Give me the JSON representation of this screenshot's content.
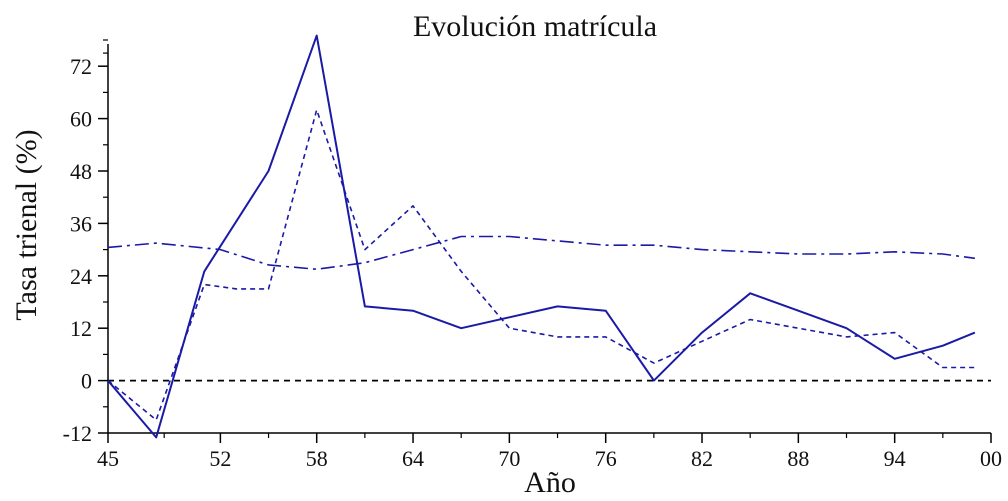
{
  "chart_data": {
    "type": "line",
    "title": "Evolución matrícula",
    "xlabel": "Año",
    "ylabel": "Tasa trienal (%)",
    "xlim": [
      1945,
      2000
    ],
    "ylim": [
      -12,
      78
    ],
    "x_ticks": [
      1945,
      1952,
      1958,
      1964,
      1970,
      1976,
      1982,
      1988,
      1994,
      2000
    ],
    "x_tick_labels": [
      "45",
      "52",
      "58",
      "64",
      "70",
      "76",
      "82",
      "88",
      "94",
      "00"
    ],
    "y_ticks": [
      -12,
      0,
      12,
      24,
      36,
      48,
      60,
      72
    ],
    "y_tick_labels": [
      "-12",
      "0",
      "12",
      "24",
      "36",
      "48",
      "60",
      "72"
    ],
    "grid": false,
    "legend": null,
    "reference_line": {
      "y": 0,
      "style": "dashed",
      "color": "#000000"
    },
    "series": [
      {
        "style": "solid",
        "color": "#1a1aa6",
        "x": [
          1945,
          1948,
          1951,
          1955,
          1958,
          1961,
          1964,
          1967,
          1970,
          1973,
          1976,
          1979,
          1982,
          1985,
          1988,
          1991,
          1994,
          1997,
          1999
        ],
        "y": [
          0,
          -13,
          25,
          48,
          79,
          17,
          16,
          12,
          14.5,
          17,
          16,
          0,
          11,
          20,
          16,
          12,
          5,
          8,
          11
        ]
      },
      {
        "style": "dashed",
        "color": "#1a1aa6",
        "x": [
          1945,
          1948,
          1951,
          1953,
          1955,
          1958,
          1961,
          1964,
          1967,
          1970,
          1973,
          1976,
          1979,
          1982,
          1985,
          1988,
          1991,
          1994,
          1997,
          1999
        ],
        "y": [
          0,
          -9,
          22,
          21,
          21,
          62,
          30,
          40,
          25,
          12,
          10,
          10,
          4,
          9,
          14,
          12,
          10,
          11,
          3,
          3
        ]
      },
      {
        "style": "dashdot",
        "color": "#1a1aa6",
        "x": [
          1945,
          1948,
          1952,
          1955,
          1958,
          1961,
          1964,
          1967,
          1970,
          1973,
          1976,
          1979,
          1982,
          1985,
          1988,
          1991,
          1994,
          1997,
          1999
        ],
        "y": [
          30.5,
          31.5,
          30,
          26.5,
          25.5,
          27,
          30,
          33,
          33,
          32,
          31,
          31,
          30,
          29.5,
          29,
          29,
          29.5,
          29,
          28
        ]
      }
    ]
  }
}
